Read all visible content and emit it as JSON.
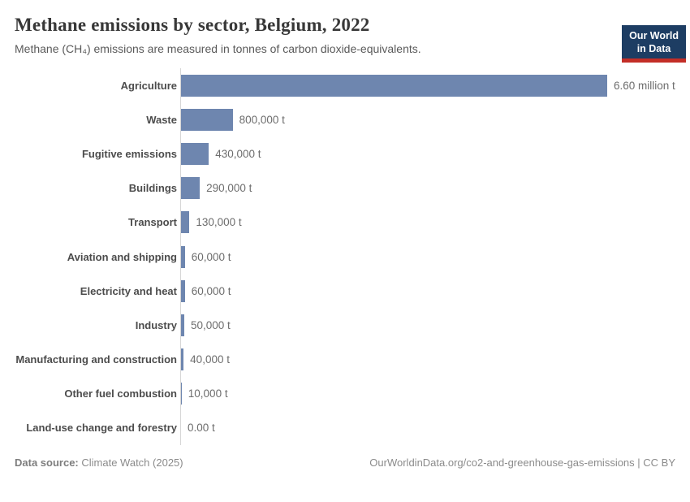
{
  "header": {
    "title": "Methane emissions by sector, Belgium, 2022",
    "subtitle": "Methane (CH₄) emissions are measured in tonnes of carbon dioxide-equivalents.",
    "logo": {
      "line1": "Our World",
      "line2": "in Data",
      "bg_color": "#1d3d63",
      "accent_color": "#c32e27"
    }
  },
  "chart_data": {
    "type": "bar",
    "orientation": "horizontal",
    "title": "Methane emissions by sector, Belgium, 2022",
    "unit": "t",
    "categories": [
      "Agriculture",
      "Waste",
      "Fugitive emissions",
      "Buildings",
      "Transport",
      "Aviation and shipping",
      "Electricity and heat",
      "Industry",
      "Manufacturing and construction",
      "Other fuel combustion",
      "Land-use change and forestry"
    ],
    "values": [
      6600000,
      800000,
      430000,
      290000,
      130000,
      60000,
      60000,
      50000,
      40000,
      10000,
      0
    ],
    "value_labels": [
      "6.60 million t",
      "800,000 t",
      "430,000 t",
      "290,000 t",
      "130,000 t",
      "60,000 t",
      "60,000 t",
      "50,000 t",
      "40,000 t",
      "10,000 t",
      "0.00 t"
    ],
    "xlim": [
      0,
      6600000
    ],
    "bar_color": "#6e86af",
    "axis_line_color": "#d6d6d6",
    "grid": false,
    "legend": "none"
  },
  "footer": {
    "datasource_label": "Data source:",
    "datasource_value": "Climate Watch (2025)",
    "attribution": "OurWorldinData.org/co2-and-greenhouse-gas-emissions | CC BY"
  }
}
